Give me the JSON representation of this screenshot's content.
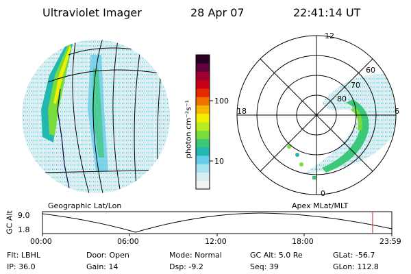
{
  "header": {
    "title": "Ultraviolet Imager",
    "date": "28 Apr 07",
    "time": "22:41:14 UT"
  },
  "colorbar": {
    "unit_label": "photon cm⁻²s⁻¹",
    "tick_labels": [
      "100",
      "10"
    ],
    "scale": "log",
    "colors": [
      "#f2f2f2",
      "#d8eef0",
      "#a8e4f0",
      "#66cce8",
      "#22b8b0",
      "#3cc878",
      "#78dc3c",
      "#b8ec20",
      "#f0f000",
      "#f8b800",
      "#f07000",
      "#e82800",
      "#c80018",
      "#a00030",
      "#600040",
      "#280020"
    ]
  },
  "left_panel": {
    "label": "Geographic Lat/Lon"
  },
  "right_panel": {
    "label": "Apex  MLat/MLT",
    "mlt_labels": {
      "top": "12",
      "left": "18",
      "right": "6",
      "bottom": "0"
    },
    "mlat_labels": [
      "80",
      "70",
      "60"
    ]
  },
  "altitude_plot": {
    "ylabel": "GC Alt",
    "y_ticks": [
      "9.0",
      "1.8"
    ],
    "x_ticks": [
      "00:00",
      "06:00",
      "12:00",
      "18:00",
      "23:59"
    ],
    "marker_time_fraction": 0.945,
    "marker_color": "#cc2222"
  },
  "info": {
    "filter": "Flt: LBHL",
    "ip": "IP: 36.0",
    "door": "Door: Open",
    "gain": "Gain: 14",
    "mode": "Mode: Normal",
    "dsp": "Dsp:    -9.2",
    "gc_alt": "GC Alt: 5.0 Re",
    "seq": "Seq: 39",
    "glat": "GLat: -56.7",
    "glon": "GLon: 112.8"
  }
}
